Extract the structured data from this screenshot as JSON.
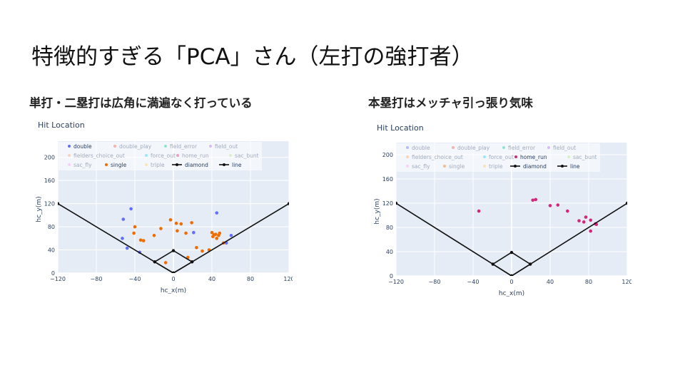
{
  "slide": {
    "title": "特徴的すぎる「PCA」さん（左打の強打者）"
  },
  "captions": {
    "left": "単打・二塁打は広角に満遍なく打っている",
    "right": "本塁打はメッチャ引っ張り気味"
  },
  "colors": {
    "plot_bg": "#e5ecf6",
    "grid": "#ffffff",
    "double": "#636efa",
    "single": "#ef6c00",
    "home_run": "#d4267a",
    "line": "#111111",
    "legend_dim": "#9aa3b5"
  },
  "chart_data": [
    {
      "type": "scatter",
      "title": "Hit Location",
      "xlabel": "hc_x(m)",
      "ylabel": "hc_y(m)",
      "xlim": [
        -120,
        120
      ],
      "ylim": [
        0,
        228
      ],
      "xticks": [
        -120,
        -80,
        -40,
        0,
        40,
        80,
        120
      ],
      "yticks": [
        0,
        40,
        80,
        120,
        160,
        200
      ],
      "grid": true,
      "legend": {
        "placement": "top-left",
        "entries": [
          {
            "name": "double",
            "active": true,
            "kind": "marker"
          },
          {
            "name": "double_play",
            "active": false,
            "kind": "marker"
          },
          {
            "name": "field_error",
            "active": false,
            "kind": "marker"
          },
          {
            "name": "field_out",
            "active": false,
            "kind": "marker"
          },
          {
            "name": "fielders_choice_out",
            "active": false,
            "kind": "marker"
          },
          {
            "name": "force_out",
            "active": false,
            "kind": "marker"
          },
          {
            "name": "home_run",
            "active": false,
            "kind": "marker"
          },
          {
            "name": "sac_bunt",
            "active": false,
            "kind": "marker"
          },
          {
            "name": "sac_fly",
            "active": false,
            "kind": "marker"
          },
          {
            "name": "single",
            "active": true,
            "kind": "marker"
          },
          {
            "name": "triple",
            "active": false,
            "kind": "marker"
          },
          {
            "name": "diamond",
            "active": true,
            "kind": "line"
          },
          {
            "name": "line",
            "active": true,
            "kind": "line"
          }
        ]
      },
      "series": [
        {
          "name": "double",
          "color": "#636efa",
          "points": [
            [
              -44,
              111
            ],
            [
              -52,
              93
            ],
            [
              -53,
              60
            ],
            [
              -48,
              43
            ],
            [
              -35,
              36
            ],
            [
              21,
              70
            ],
            [
              45,
              104
            ],
            [
              60,
              65
            ],
            [
              55,
              52
            ]
          ]
        },
        {
          "name": "single",
          "color": "#ef6c00",
          "points": [
            [
              -40,
              80
            ],
            [
              -41,
              69
            ],
            [
              -34,
              57
            ],
            [
              -31,
              56
            ],
            [
              -20,
              65
            ],
            [
              -13,
              77
            ],
            [
              -8,
              18
            ],
            [
              -3,
              92
            ],
            [
              3,
              86
            ],
            [
              4,
              73
            ],
            [
              8,
              85
            ],
            [
              13,
              69
            ],
            [
              19,
              87
            ],
            [
              24,
              44
            ],
            [
              30,
              38
            ],
            [
              15,
              27
            ],
            [
              37,
              40
            ],
            [
              41,
              63
            ],
            [
              45,
              60
            ],
            [
              40,
              70
            ],
            [
              44,
              67
            ],
            [
              47,
              65
            ],
            [
              42,
              66
            ],
            [
              48,
              69
            ],
            [
              52,
              52
            ]
          ]
        },
        {
          "name": "diamond",
          "color": "#111111",
          "points": [
            [
              0,
              0
            ],
            [
              19.4,
              19.4
            ],
            [
              0,
              38.8
            ],
            [
              -19.4,
              19.4
            ],
            [
              0,
              0
            ]
          ]
        },
        {
          "name": "line",
          "color": "#111111",
          "points": [
            [
              -120,
              120
            ],
            [
              0,
              0
            ],
            [
              120,
              120
            ]
          ]
        }
      ]
    },
    {
      "type": "scatter",
      "title": "Hit Location",
      "xlabel": "hc_x(m)",
      "ylabel": "hc_y(m)",
      "xlim": [
        -120,
        120
      ],
      "ylim": [
        0,
        220
      ],
      "xticks": [
        -120,
        -80,
        -40,
        0,
        40,
        80,
        120
      ],
      "yticks": [
        0,
        40,
        80,
        120,
        160,
        200
      ],
      "grid": true,
      "legend": {
        "placement": "top-left",
        "entries": [
          {
            "name": "double",
            "active": false,
            "kind": "marker"
          },
          {
            "name": "double_play",
            "active": false,
            "kind": "marker"
          },
          {
            "name": "field_error",
            "active": false,
            "kind": "marker"
          },
          {
            "name": "field_out",
            "active": false,
            "kind": "marker"
          },
          {
            "name": "fielders_choice_out",
            "active": false,
            "kind": "marker"
          },
          {
            "name": "force_out",
            "active": false,
            "kind": "marker"
          },
          {
            "name": "home_run",
            "active": true,
            "kind": "marker"
          },
          {
            "name": "sac_bunt",
            "active": false,
            "kind": "marker"
          },
          {
            "name": "sac_fly",
            "active": false,
            "kind": "marker"
          },
          {
            "name": "single",
            "active": false,
            "kind": "marker"
          },
          {
            "name": "triple",
            "active": false,
            "kind": "marker"
          },
          {
            "name": "diamond",
            "active": true,
            "kind": "line"
          },
          {
            "name": "line",
            "active": true,
            "kind": "line"
          }
        ]
      },
      "series": [
        {
          "name": "home_run",
          "color": "#d4267a",
          "points": [
            [
              -34,
              107
            ],
            [
              22,
              125
            ],
            [
              25,
              126
            ],
            [
              40,
              116
            ],
            [
              48,
              117
            ],
            [
              58,
              107
            ],
            [
              70,
              91
            ],
            [
              75,
              89
            ],
            [
              77,
              97
            ],
            [
              82,
              92
            ],
            [
              82,
              74
            ],
            [
              88,
              85
            ],
            [
              87,
              86
            ]
          ]
        },
        {
          "name": "diamond",
          "color": "#111111",
          "points": [
            [
              0,
              0
            ],
            [
              19.4,
              19.4
            ],
            [
              0,
              38.8
            ],
            [
              -19.4,
              19.4
            ],
            [
              0,
              0
            ]
          ]
        },
        {
          "name": "line",
          "color": "#111111",
          "points": [
            [
              -120,
              120
            ],
            [
              0,
              0
            ],
            [
              120,
              120
            ]
          ]
        }
      ]
    }
  ]
}
